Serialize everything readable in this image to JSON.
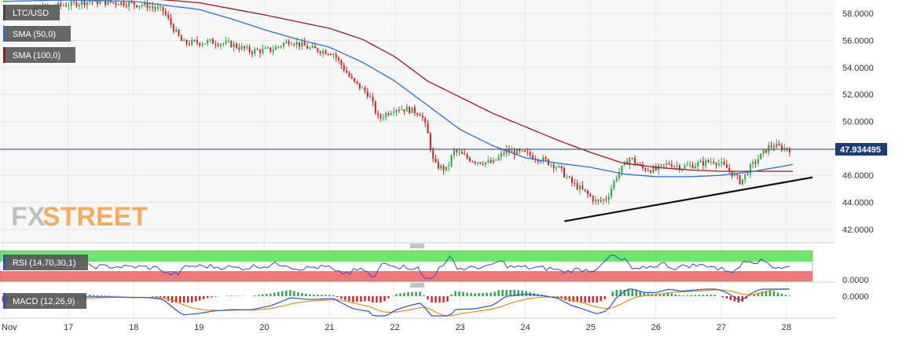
{
  "chart_data": [
    {
      "type": "candlestick",
      "symbol_label": "LTC/USD",
      "indicator_labels": [
        "SMA (50,0)",
        "SMA (100,0)"
      ],
      "y_ticks": [
        "58.0000",
        "56.0000",
        "54.0000",
        "52.0000",
        "50.0000",
        "46.0000",
        "44.0000",
        "42.0000"
      ],
      "ylim": [
        41.0,
        59.0
      ],
      "last_price_label": "47.934495",
      "last_price": 47.934495,
      "x_ticks": [
        "Nov",
        "17",
        "18",
        "19",
        "20",
        "21",
        "22",
        "23",
        "24",
        "25",
        "26",
        "27",
        "28"
      ],
      "x_tick_days": [
        16,
        17,
        18,
        19,
        20,
        21,
        22,
        23,
        24,
        25,
        26,
        27,
        28
      ],
      "xlim_days": [
        16.0,
        28.4
      ],
      "price_keyframes": [
        [
          16.0,
          58.0
        ],
        [
          16.5,
          58.3
        ],
        [
          16.9,
          58.6
        ],
        [
          17.3,
          58.9
        ],
        [
          17.8,
          58.8
        ],
        [
          18.2,
          58.6
        ],
        [
          18.45,
          58.2
        ],
        [
          18.62,
          56.8
        ],
        [
          18.75,
          55.8
        ],
        [
          19.2,
          55.9
        ],
        [
          19.5,
          55.7
        ],
        [
          19.8,
          55.2
        ],
        [
          20.1,
          55.3
        ],
        [
          20.4,
          56.0
        ],
        [
          20.7,
          55.4
        ],
        [
          21.05,
          55.1
        ],
        [
          21.35,
          53.0
        ],
        [
          21.6,
          52.0
        ],
        [
          21.75,
          50.2
        ],
        [
          22.0,
          51.0
        ],
        [
          22.2,
          50.9
        ],
        [
          22.4,
          50.6
        ],
        [
          22.5,
          49.2
        ],
        [
          22.6,
          46.8
        ],
        [
          22.8,
          46.4
        ],
        [
          22.9,
          47.8
        ],
        [
          23.2,
          47.1
        ],
        [
          23.5,
          46.9
        ],
        [
          23.7,
          47.8
        ],
        [
          24.0,
          47.6
        ],
        [
          24.3,
          47.1
        ],
        [
          24.5,
          46.6
        ],
        [
          24.7,
          45.5
        ],
        [
          24.9,
          44.8
        ],
        [
          25.1,
          44.0
        ],
        [
          25.25,
          44.3
        ],
        [
          25.4,
          46.0
        ],
        [
          25.6,
          47.3
        ],
        [
          25.8,
          46.5
        ],
        [
          26.0,
          46.4
        ],
        [
          26.2,
          46.9
        ],
        [
          26.4,
          46.6
        ],
        [
          26.6,
          46.8
        ],
        [
          26.9,
          47.1
        ],
        [
          27.1,
          46.5
        ],
        [
          27.3,
          45.5
        ],
        [
          27.45,
          46.6
        ],
        [
          27.6,
          47.4
        ],
        [
          27.75,
          48.2
        ],
        [
          27.9,
          48.1
        ],
        [
          28.05,
          47.93
        ]
      ],
      "sma50_keyframes": [
        [
          16.0,
          58.9
        ],
        [
          17.0,
          59.0
        ],
        [
          18.0,
          58.9
        ],
        [
          19.0,
          58.3
        ],
        [
          19.5,
          57.6
        ],
        [
          20.0,
          56.8
        ],
        [
          20.5,
          56.1
        ],
        [
          21.0,
          55.5
        ],
        [
          21.5,
          54.4
        ],
        [
          22.0,
          53.0
        ],
        [
          22.5,
          51.2
        ],
        [
          23.0,
          49.4
        ],
        [
          23.5,
          48.2
        ],
        [
          24.0,
          47.3
        ],
        [
          24.5,
          46.9
        ],
        [
          25.0,
          46.6
        ],
        [
          25.5,
          46.1
        ],
        [
          26.0,
          45.9
        ],
        [
          26.5,
          45.9
        ],
        [
          27.0,
          46.0
        ],
        [
          27.5,
          46.3
        ],
        [
          28.1,
          46.8
        ]
      ],
      "sma100_keyframes": [
        [
          16.0,
          59.8
        ],
        [
          17.0,
          59.6
        ],
        [
          18.0,
          59.2
        ],
        [
          19.0,
          58.8
        ],
        [
          20.0,
          57.9
        ],
        [
          21.0,
          56.9
        ],
        [
          21.5,
          56.1
        ],
        [
          22.0,
          54.8
        ],
        [
          22.5,
          53.0
        ],
        [
          23.0,
          51.8
        ],
        [
          23.5,
          50.6
        ],
        [
          24.0,
          49.6
        ],
        [
          24.5,
          48.6
        ],
        [
          25.0,
          47.7
        ],
        [
          25.5,
          46.9
        ],
        [
          26.0,
          46.6
        ],
        [
          26.5,
          46.4
        ],
        [
          27.0,
          46.3
        ],
        [
          27.5,
          46.3
        ],
        [
          28.1,
          46.3
        ]
      ],
      "trendline": [
        [
          24.6,
          42.6
        ],
        [
          28.4,
          45.85
        ]
      ]
    },
    {
      "type": "line",
      "indicator_label": "RSI (14,70,30,1)",
      "y_tick": "0.0000"
    },
    {
      "type": "bar",
      "indicator_label": "MACD (12,26,9)",
      "y_tick": "0.0000"
    }
  ],
  "watermark": {
    "fx": "FX",
    "street": "STREET"
  },
  "colors": {
    "sma50": "#2f6fd0",
    "sma100": "#a01818",
    "bull": "#27a745",
    "bear": "#d32020",
    "price_line": "#1c3c78",
    "rsi_over": "#6ee66e",
    "rsi_under": "#f07878",
    "rsi_line": "#2a4fc7",
    "macd_line": "#2a55c8",
    "signal_line": "#f08a1e",
    "label_bg": "#555555",
    "price_badge_bg": "#1c3c78",
    "watermark_fx": "#bfbfbf",
    "watermark_street": "#f6ab63"
  }
}
